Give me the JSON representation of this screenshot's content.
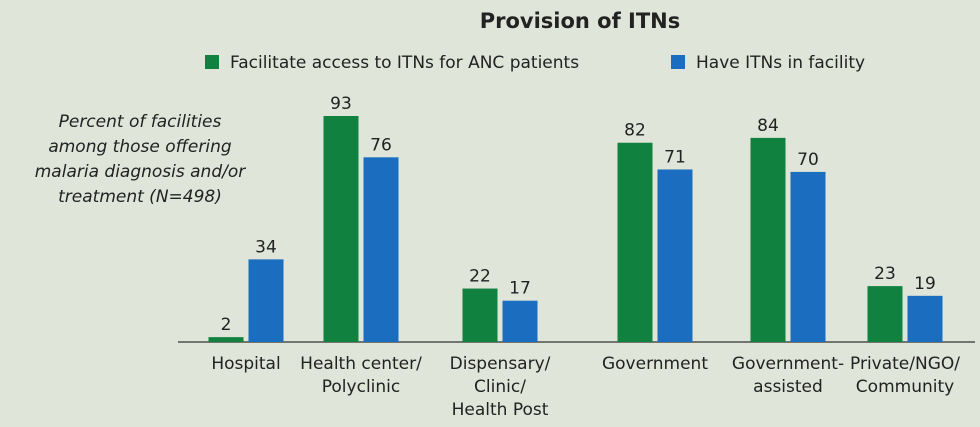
{
  "chart_data": {
    "type": "bar",
    "title": "Provision of ITNs",
    "y_axis_label": [
      "Percent of facilities",
      "among those offering",
      "malaria diagnosis and/or",
      "treatment (N=498)"
    ],
    "categories": [
      [
        "Hospital"
      ],
      [
        "Health center/",
        "Polyclinic"
      ],
      [
        "Dispensary/",
        "Clinic/",
        "Health Post"
      ],
      [
        "Government"
      ],
      [
        "Government-",
        "assisted"
      ],
      [
        "Private/NGO/",
        "Community"
      ]
    ],
    "series": [
      {
        "name": "Facilitate access to ITNs for ANC patients",
        "color": "#11813f",
        "values": [
          2,
          93,
          22,
          82,
          84,
          23
        ]
      },
      {
        "name": "Have ITNs in facility",
        "color": "#1b6ebf",
        "values": [
          34,
          76,
          17,
          71,
          70,
          19
        ]
      }
    ],
    "ylim": [
      0,
      100
    ]
  }
}
